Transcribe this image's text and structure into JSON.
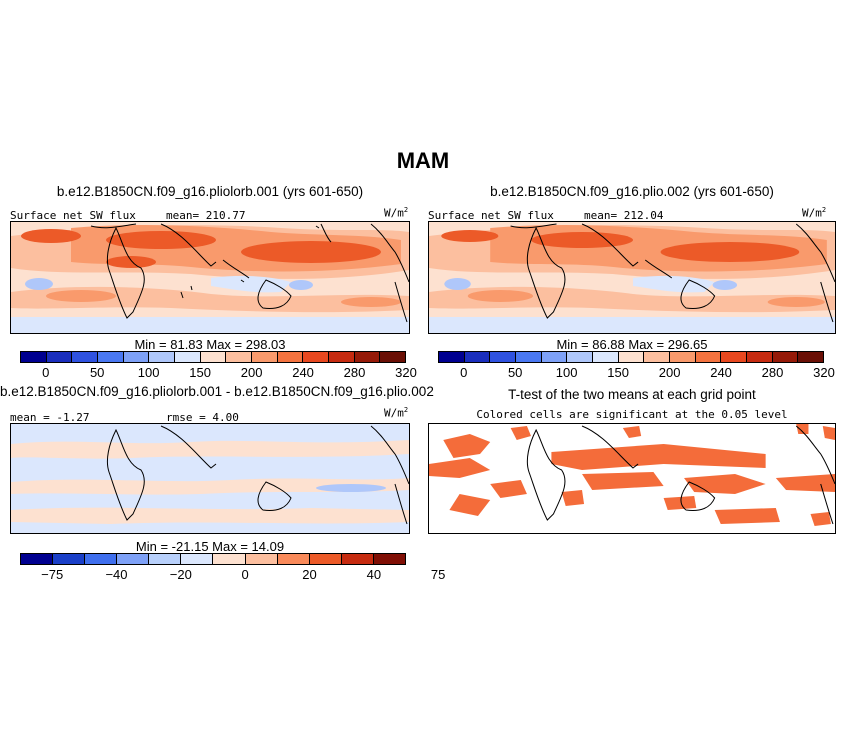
{
  "figure": {
    "title": "MAM"
  },
  "panels": {
    "p1": {
      "title": "b.e12.B1850CN.f09_g16.pliolorb.001 (yrs 601-650)",
      "var_label": "Surface net SW flux",
      "mean_label": "mean= 210.77",
      "units": "W/m",
      "units_sup": "2",
      "minmax": "Min =   81.83  Max =  298.03"
    },
    "p2": {
      "title": "b.e12.B1850CN.f09_g16.plio.002 (yrs 601-650)",
      "var_label": "Surface net SW flux",
      "mean_label": "mean= 212.04",
      "units": "W/m",
      "units_sup": "2",
      "minmax": "Min =   86.88  Max =  296.65"
    },
    "p3": {
      "title": "b.e12.B1850CN.f09_g16.pliolorb.001 - b.e12.B1850CN.f09_g16.plio.002",
      "mean_label": "mean =  -1.27",
      "rmse_label": "rmse =   4.00",
      "units": "W/m",
      "units_sup": "2",
      "minmax": "Min = -21.15  Max =  14.09"
    },
    "p4": {
      "title": "T-test of the two means at each grid point",
      "subtitle": "Colored cells are significant at the 0.05 level"
    }
  },
  "colorbars": {
    "abs": {
      "colors": [
        "#000090",
        "#1a2ebd",
        "#2f52e0",
        "#4a78f2",
        "#7ea1f7",
        "#afc7fa",
        "#dbe7fd",
        "#fde1d0",
        "#fcbf9f",
        "#f99a6c",
        "#f4733f",
        "#e8481f",
        "#c62b10",
        "#961a08",
        "#6a0f05"
      ],
      "labels": [
        "0",
        "50",
        "100",
        "150",
        "200",
        "240",
        "280",
        "320"
      ]
    },
    "diff": {
      "colors": [
        "#000090",
        "#1a3fc8",
        "#3f6fee",
        "#7ea1f7",
        "#b8d0fb",
        "#dbe7fd",
        "#fde1d0",
        "#fcbf9f",
        "#f98a5a",
        "#ec5a28",
        "#c62b10",
        "#800f05"
      ],
      "labels": [
        "−75",
        "−40",
        "−20",
        "0",
        "20",
        "40",
        "75"
      ]
    }
  },
  "map_colors": {
    "high": "#ec5a28",
    "mid": "#f99a6c",
    "midlow": "#fcbf9f",
    "low": "#fde1d0",
    "cool": "#dbe7fd",
    "cooler": "#afc7fa",
    "ttest": "#f46c3a"
  }
}
